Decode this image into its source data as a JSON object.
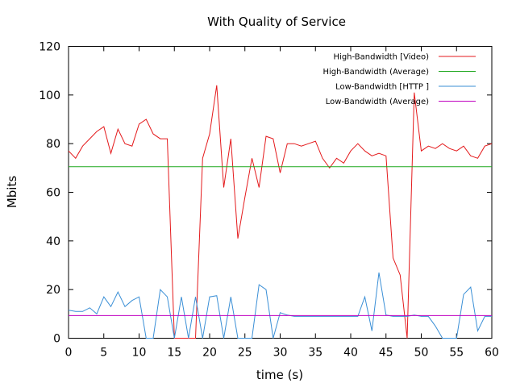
{
  "chart_data": {
    "type": "line",
    "title": "With Quality of Service",
    "xlabel": "time (s)",
    "ylabel": "Mbits",
    "xlim": [
      0,
      60
    ],
    "ylim": [
      0,
      120
    ],
    "xticks": [
      0,
      5,
      10,
      15,
      20,
      25,
      30,
      35,
      40,
      45,
      50,
      55,
      60
    ],
    "yticks": [
      0,
      20,
      40,
      60,
      80,
      100,
      120
    ],
    "grid": false,
    "legend_position": "top-right",
    "series": [
      {
        "name": "High-Bandwidth [Video)",
        "color": "#e41a1c",
        "x": [
          0,
          1,
          2,
          3,
          4,
          5,
          6,
          7,
          8,
          9,
          10,
          11,
          12,
          13,
          14,
          15,
          16,
          17,
          18,
          19,
          20,
          21,
          22,
          23,
          24,
          25,
          26,
          27,
          28,
          29,
          30,
          31,
          32,
          33,
          34,
          35,
          36,
          37,
          38,
          39,
          40,
          41,
          42,
          43,
          44,
          45,
          46,
          47,
          48,
          49,
          50,
          51,
          52,
          53,
          54,
          55,
          56,
          57,
          58,
          59,
          60
        ],
        "y": [
          77,
          74,
          79,
          82,
          85,
          87,
          76,
          86,
          80,
          79,
          88,
          90,
          84,
          82,
          82,
          0,
          0,
          0,
          0,
          74,
          84,
          104,
          62,
          82,
          41,
          58,
          74,
          62,
          83,
          82,
          68,
          80,
          80,
          79,
          80,
          81,
          74,
          70,
          74,
          72,
          77,
          80,
          77,
          75,
          76,
          75,
          33,
          26,
          0,
          101,
          77,
          79,
          78,
          80,
          78,
          77,
          79,
          75,
          74,
          79,
          80
        ]
      },
      {
        "name": "High-Bandwidth (Average)",
        "color": "#1fa81f",
        "x": [
          0,
          60
        ],
        "y": [
          70.5,
          70.5
        ]
      },
      {
        "name": "Low-Bandwidth [HTTP ]",
        "color": "#3a8fd6",
        "x": [
          0,
          1,
          2,
          3,
          4,
          5,
          6,
          7,
          8,
          9,
          10,
          11,
          12,
          13,
          14,
          15,
          16,
          17,
          18,
          19,
          20,
          21,
          22,
          23,
          24,
          25,
          26,
          27,
          28,
          29,
          30,
          31,
          32,
          33,
          34,
          35,
          36,
          37,
          38,
          39,
          40,
          41,
          42,
          43,
          44,
          45,
          46,
          47,
          48,
          49,
          50,
          51,
          52,
          53,
          54,
          55,
          56,
          57,
          58,
          59,
          60
        ],
        "y": [
          11.5,
          11,
          11,
          12.5,
          10,
          17,
          13,
          19,
          13,
          15.5,
          17,
          0,
          0,
          20,
          17,
          0,
          17,
          0,
          17,
          0,
          17,
          17.5,
          0,
          17,
          0,
          0,
          0,
          22,
          20,
          0,
          10.5,
          9.5,
          9,
          9,
          9,
          9,
          9,
          9,
          9,
          9,
          9,
          9,
          17,
          3,
          27,
          9.5,
          9,
          9,
          9,
          9.5,
          9,
          9,
          5,
          0,
          0,
          0,
          18,
          21,
          3,
          9,
          9
        ]
      },
      {
        "name": "Low-Bandwidth (Average)",
        "color": "#c000c0",
        "x": [
          0,
          60
        ],
        "y": [
          9.3,
          9.3
        ]
      }
    ]
  }
}
